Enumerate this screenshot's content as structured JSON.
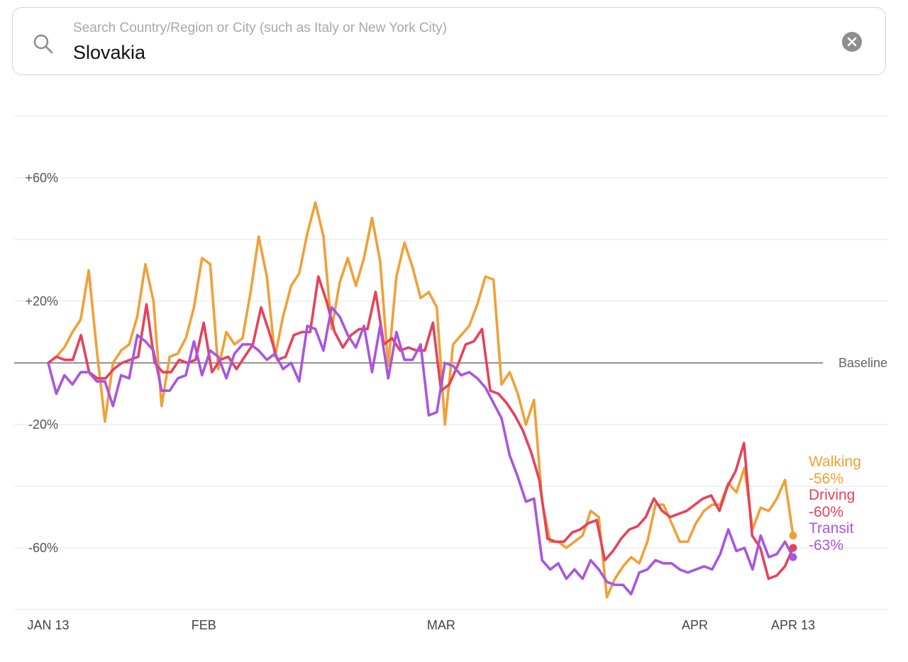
{
  "search": {
    "placeholder": "Search Country/Region or City (such as Italy or New York City)",
    "value": "Slovakia"
  },
  "icons": {
    "search": "search-icon",
    "clear": "clear-icon"
  },
  "chart_data": {
    "type": "line",
    "title": "",
    "xlabel": "",
    "ylabel": "",
    "x_range": [
      "2020-01-13",
      "2020-04-13"
    ],
    "ylim": [
      -80,
      80
    ],
    "grid": true,
    "y_gridlines": [
      -80,
      -60,
      -40,
      -20,
      0,
      20,
      40,
      60,
      80
    ],
    "y_ticks": [
      {
        "value": 60,
        "label": "+60%"
      },
      {
        "value": 20,
        "label": "+20%"
      },
      {
        "value": -20,
        "label": "-20%"
      },
      {
        "value": -60,
        "label": "-60%"
      }
    ],
    "x_ticks": [
      {
        "date": "2020-01-13",
        "label": "JAN 13"
      },
      {
        "date": "2020-02-01",
        "label": "FEB"
      },
      {
        "date": "2020-03-01",
        "label": "MAR"
      },
      {
        "date": "2020-04-01",
        "label": "APR"
      },
      {
        "date": "2020-04-13",
        "label": "APR 13"
      }
    ],
    "baseline": {
      "value": 0,
      "label": "Baseline"
    },
    "legend_placement": "right-end",
    "series": [
      {
        "name": "Walking",
        "color": "#F0A038",
        "end_label": "-56%",
        "values": [
          0,
          2,
          5,
          10,
          14,
          30,
          4,
          -19,
          0,
          4,
          6,
          15,
          32,
          20,
          -14,
          2,
          3,
          8,
          18,
          34,
          32,
          -2,
          10,
          6,
          8,
          23,
          41,
          28,
          2,
          15,
          25,
          29,
          42,
          52,
          41,
          11,
          26,
          34,
          25,
          34,
          47,
          33,
          -1,
          28,
          39,
          31,
          21,
          23,
          18,
          -20,
          6,
          9,
          12,
          19,
          28,
          27,
          -7,
          -3,
          -10,
          -20,
          -12,
          -45,
          -58,
          -58,
          -60,
          -58,
          -56,
          -48,
          -50,
          -76,
          -70,
          -66,
          -63,
          -65,
          -58,
          -46,
          -46,
          -52,
          -58,
          -58,
          -52,
          -48,
          -46,
          -46,
          -39,
          -42,
          -34,
          -54,
          -47,
          -48,
          -44,
          -38,
          -56
        ]
      },
      {
        "name": "Driving",
        "color": "#E6425A",
        "end_label": "-60%",
        "values": [
          0,
          2,
          1,
          1,
          9,
          -3,
          -5,
          -5,
          -2,
          0,
          1,
          2,
          19,
          0,
          -3,
          -3,
          1,
          0,
          1,
          13,
          -3,
          1,
          2,
          -2,
          2,
          6,
          18,
          10,
          1,
          2,
          9,
          10,
          10,
          28,
          20,
          10,
          5,
          9,
          11,
          11,
          23,
          6,
          8,
          4,
          5,
          4,
          4,
          13,
          -9,
          -7,
          -1,
          6,
          7,
          11,
          -9,
          -10,
          -13,
          -17,
          -22,
          -29,
          -38,
          -57,
          -58,
          -58,
          -55,
          -54,
          -52,
          -51,
          -64,
          -61,
          -57,
          -54,
          -53,
          -50,
          -44,
          -48,
          -50,
          -49,
          -48,
          -46,
          -44,
          -43,
          -48,
          -40,
          -35,
          -26,
          -56,
          -60,
          -70,
          -69,
          -66,
          -60
        ]
      },
      {
        "name": "Transit",
        "color": "#A855E0",
        "end_label": "-63%",
        "values": [
          0,
          -10,
          -4,
          -7,
          -3,
          -3,
          -6,
          -6,
          -14,
          -4,
          -5,
          9,
          7,
          4,
          -9,
          -9,
          -5,
          -4,
          7,
          -4,
          4,
          2,
          -5,
          3,
          6,
          6,
          4,
          1,
          3,
          -2,
          0,
          -6,
          12,
          11,
          4,
          18,
          15,
          9,
          5,
          12,
          -3,
          12,
          -5,
          10,
          1,
          1,
          6,
          -17,
          -16,
          0,
          -1,
          -4,
          -3,
          -5,
          -8,
          -13,
          -18,
          -30,
          -37,
          -45,
          -44,
          -64,
          -67,
          -65,
          -70,
          -67,
          -70,
          -64,
          -67,
          -71,
          -72,
          -72,
          -75,
          -68,
          -67,
          -64,
          -65,
          -65,
          -67,
          -68,
          -67,
          -66,
          -67,
          -62,
          -54,
          -61,
          -60,
          -67,
          -56,
          -63,
          -62,
          -58,
          -63
        ]
      }
    ]
  }
}
